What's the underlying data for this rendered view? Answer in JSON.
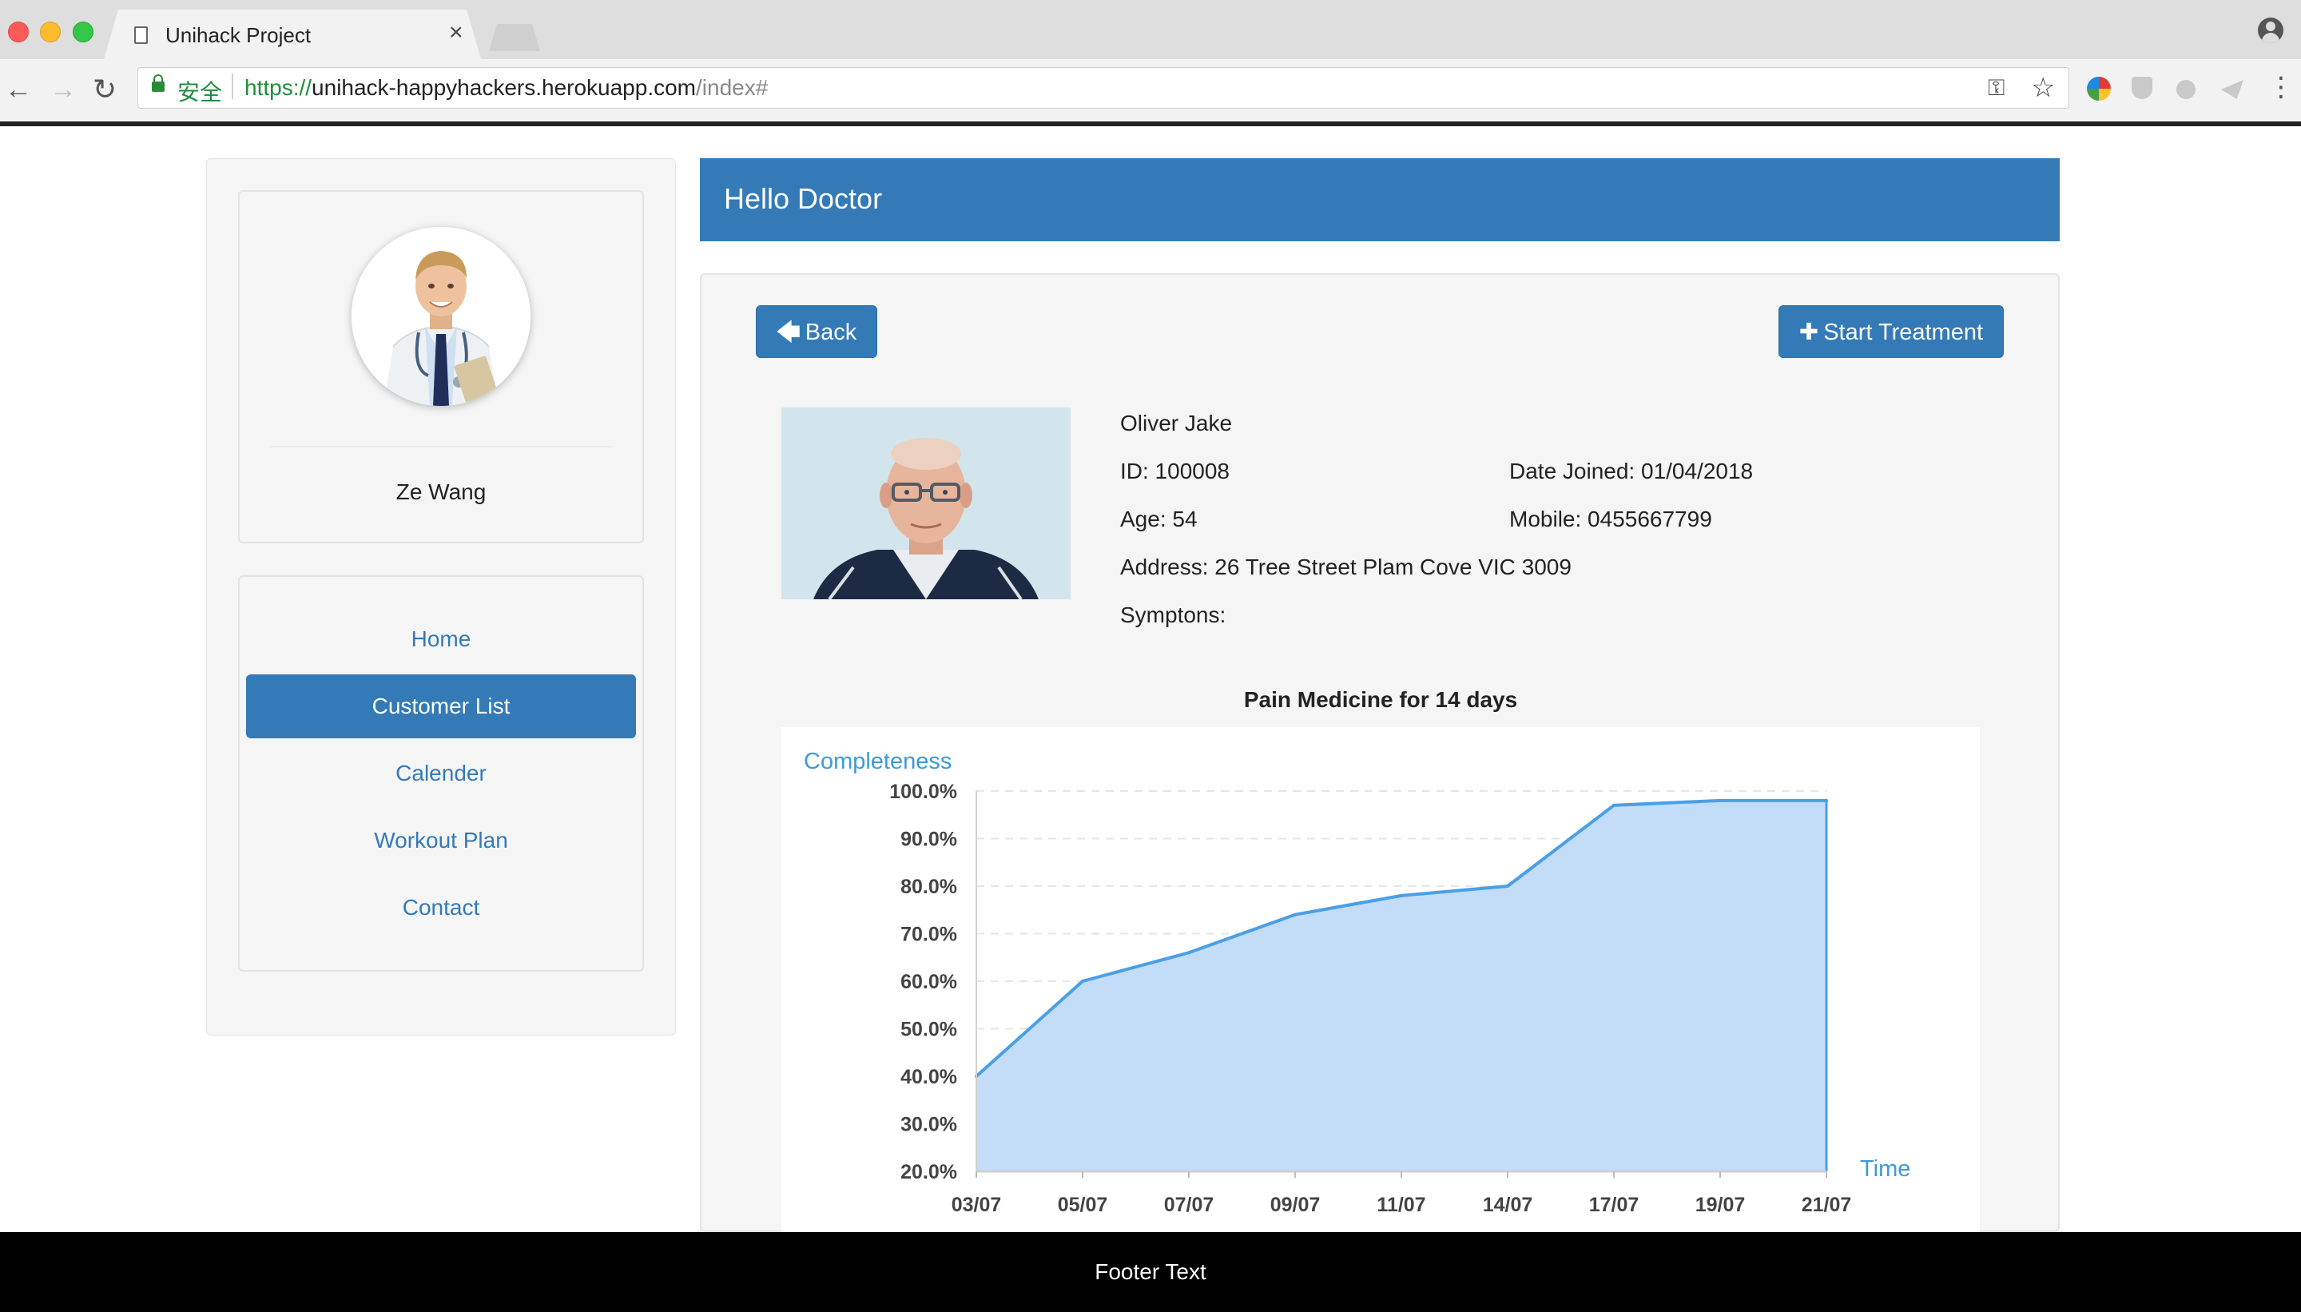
{
  "browser": {
    "tab_title": "Unihack Project",
    "tab_close": "×",
    "secure_label": "安全",
    "url_scheme": "https://",
    "url_host": "unihack-happyhackers.herokuapp.com",
    "url_path": "/index#",
    "icons": [
      "page-icon",
      "back-arrow-icon",
      "forward-arrow-icon",
      "reload-icon",
      "lock-icon",
      "key-icon",
      "star-icon",
      "kebab-menu-icon",
      "profile-icon"
    ]
  },
  "sidebar": {
    "profile_name": "Ze Wang",
    "nav": [
      {
        "label": "Home",
        "active": false
      },
      {
        "label": "Customer List",
        "active": true
      },
      {
        "label": "Calender",
        "active": false
      },
      {
        "label": "Workout Plan",
        "active": false
      },
      {
        "label": "Contact",
        "active": false
      }
    ]
  },
  "header": {
    "greeting": "Hello Doctor"
  },
  "actions": {
    "back_label": "Back",
    "back_icon": "arrow-left-icon",
    "start_label": "Start Treatment",
    "start_icon": "plus-icon"
  },
  "patient": {
    "name": "Oliver Jake",
    "id": "ID: 100008",
    "date_joined": "Date Joined: 01/04/2018",
    "age": "Age: 54",
    "mobile": "Mobile: 0455667799",
    "address": "Address: 26 Tree Street Plam Cove VIC 3009",
    "symptoms": "Symptons:"
  },
  "chart_data": {
    "type": "area",
    "title": "Pain Medicine for 14 days",
    "ylabel": "Completeness",
    "xlabel": "Time",
    "categories": [
      "03/07",
      "05/07",
      "07/07",
      "09/07",
      "11/07",
      "14/07",
      "17/07",
      "19/07",
      "21/07"
    ],
    "y_ticks": [
      "20.0%",
      "30.0%",
      "40.0%",
      "50.0%",
      "60.0%",
      "70.0%",
      "80.0%",
      "90.0%",
      "100.0%"
    ],
    "values": [
      40,
      60,
      66,
      74,
      78,
      80,
      97,
      98,
      98
    ],
    "ylim": [
      20,
      100
    ],
    "grid": true,
    "colors": {
      "line": "#4a9fe6",
      "fill": "#c3ddf8",
      "axis_text": "#444444",
      "axis_title": "#3d9ad8"
    }
  },
  "footer": {
    "text": "Footer Text"
  },
  "colors": {
    "primary": "#337ab7",
    "panel_bg": "#f5f5f5",
    "footer_bg": "#000000"
  }
}
